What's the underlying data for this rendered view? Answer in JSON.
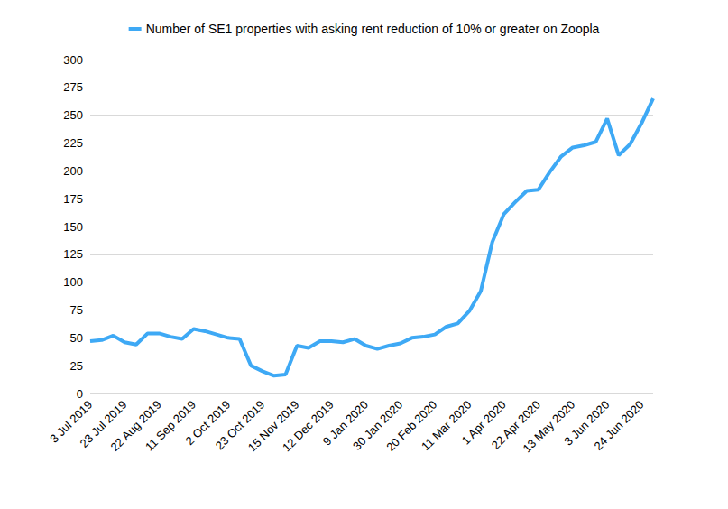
{
  "chart_data": {
    "type": "line",
    "categories": [
      "3 Jul 2019",
      null,
      null,
      "23 Jul 2019",
      null,
      null,
      "22 Aug 2019",
      null,
      null,
      "11 Sep 2019",
      null,
      null,
      "2 Oct 2019",
      null,
      null,
      "23 Oct 2019",
      null,
      null,
      "15 Nov 2019",
      null,
      null,
      "12 Dec 2019",
      null,
      null,
      "9 Jan 2020",
      null,
      null,
      "30 Jan 2020",
      null,
      null,
      "20 Feb 2020",
      null,
      null,
      "11 Mar 2020",
      null,
      null,
      "1 Apr 2020",
      null,
      null,
      "22 Apr 2020",
      null,
      null,
      "13 May 2020",
      null,
      null,
      "3 Jun 2020",
      null,
      null,
      "24 Jun 2020",
      null
    ],
    "series": [
      {
        "name": "Number of SE1 properties with asking rent reduction of 10% or greater on Zoopla",
        "color": "#3ea9f5",
        "values": [
          47,
          48,
          52,
          46,
          44,
          54,
          54,
          51,
          49,
          58,
          56,
          53,
          50,
          49,
          25,
          20,
          16,
          17,
          43,
          41,
          47,
          47,
          46,
          49,
          43,
          40,
          43,
          45,
          50,
          51,
          53,
          60,
          63,
          74,
          92,
          136,
          161,
          172,
          182,
          183,
          199,
          213,
          221,
          223,
          226,
          247,
          214,
          224,
          243,
          265
        ]
      }
    ],
    "ylim": [
      0,
      300
    ],
    "yticks": [
      0,
      25,
      50,
      75,
      100,
      125,
      150,
      175,
      200,
      225,
      250,
      275,
      300
    ],
    "grid": true,
    "legend": "top"
  }
}
